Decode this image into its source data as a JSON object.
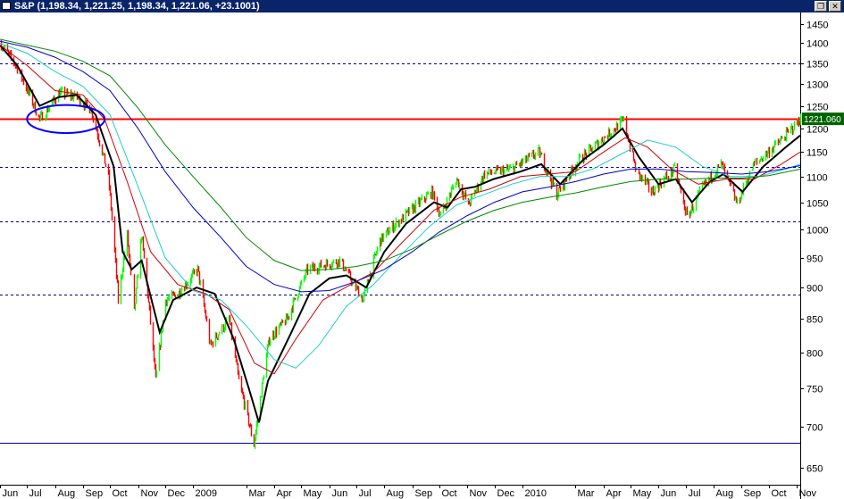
{
  "window": {
    "title": "S&P (1,198.34, 1,221.25, 1,198.34, 1,221.06, +23.1001)",
    "restore_glyph": "❐",
    "close_glyph": "✕"
  },
  "colors": {
    "up": "#00ff00",
    "down": "#ff0000",
    "ma_fast": "#000000",
    "ma_red": "#d00000",
    "ma_cyan": "#22cccc",
    "ma_blue": "#0000cc",
    "ma_green": "#008800",
    "hline_solid": "#ff0000",
    "hline_dash": "#000080",
    "ellipse": "#0000ff",
    "last_price_bg": "#006400"
  },
  "chart_data": {
    "type": "candlestick",
    "title": "S&P",
    "ohlc_last": {
      "open": 1198.34,
      "high": 1221.25,
      "low": 1198.34,
      "close": 1221.06,
      "change": 23.1001
    },
    "last_price_label": "1221.060",
    "y_scale": "log",
    "ylim": [
      630,
      1480
    ],
    "yticks": [
      650,
      700,
      750,
      800,
      850,
      900,
      950,
      1000,
      1050,
      1100,
      1150,
      1200,
      1250,
      1300,
      1350,
      1400,
      1450
    ],
    "xlim": [
      "2008-06-01",
      "2010-11-05"
    ],
    "x_labels": [
      {
        "date": "2008-06-01",
        "label": "Jun"
      },
      {
        "date": "2008-07-01",
        "label": "Jul"
      },
      {
        "date": "2008-08-01",
        "label": "Aug"
      },
      {
        "date": "2008-09-01",
        "label": "Sep"
      },
      {
        "date": "2008-10-01",
        "label": "Oct"
      },
      {
        "date": "2008-11-01",
        "label": "Nov"
      },
      {
        "date": "2008-12-01",
        "label": "Dec"
      },
      {
        "date": "2009-01-01",
        "label": "2009"
      },
      {
        "date": "2009-03-01",
        "label": "Mar"
      },
      {
        "date": "2009-04-01",
        "label": "Apr"
      },
      {
        "date": "2009-05-01",
        "label": "May"
      },
      {
        "date": "2009-06-01",
        "label": "Jun"
      },
      {
        "date": "2009-07-01",
        "label": "Jul"
      },
      {
        "date": "2009-08-01",
        "label": "Aug"
      },
      {
        "date": "2009-09-01",
        "label": "Sep"
      },
      {
        "date": "2009-10-01",
        "label": "Oct"
      },
      {
        "date": "2009-11-01",
        "label": "Nov"
      },
      {
        "date": "2009-12-01",
        "label": "Dec"
      },
      {
        "date": "2010-01-01",
        "label": "2010"
      },
      {
        "date": "2010-03-01",
        "label": "Mar"
      },
      {
        "date": "2010-04-01",
        "label": "Apr"
      },
      {
        "date": "2010-05-01",
        "label": "May"
      },
      {
        "date": "2010-06-01",
        "label": "Jun"
      },
      {
        "date": "2010-07-01",
        "label": "Jul"
      },
      {
        "date": "2010-08-01",
        "label": "Aug"
      },
      {
        "date": "2010-09-01",
        "label": "Sep"
      },
      {
        "date": "2010-10-01",
        "label": "Oct"
      },
      {
        "date": "2010-11-01",
        "label": "Nov"
      }
    ],
    "price_path": [
      [
        "2008-06-01",
        1400
      ],
      [
        "2008-06-20",
        1340
      ],
      [
        "2008-07-15",
        1220
      ],
      [
        "2008-08-05",
        1280
      ],
      [
        "2008-08-25",
        1270
      ],
      [
        "2008-09-10",
        1240
      ],
      [
        "2008-09-29",
        1100
      ],
      [
        "2008-10-10",
        880
      ],
      [
        "2008-10-20",
        990
      ],
      [
        "2008-10-27",
        860
      ],
      [
        "2008-11-04",
        990
      ],
      [
        "2008-11-20",
        760
      ],
      [
        "2008-12-01",
        880
      ],
      [
        "2008-12-15",
        890
      ],
      [
        "2009-01-06",
        930
      ],
      [
        "2009-01-20",
        810
      ],
      [
        "2009-02-09",
        850
      ],
      [
        "2009-02-20",
        760
      ],
      [
        "2009-03-09",
        677
      ],
      [
        "2009-03-26",
        820
      ],
      [
        "2009-04-15",
        850
      ],
      [
        "2009-05-08",
        930
      ],
      [
        "2009-06-12",
        945
      ],
      [
        "2009-07-08",
        880
      ],
      [
        "2009-07-27",
        980
      ],
      [
        "2009-08-20",
        1020
      ],
      [
        "2009-09-22",
        1070
      ],
      [
        "2009-10-02",
        1025
      ],
      [
        "2009-10-20",
        1095
      ],
      [
        "2009-11-02",
        1045
      ],
      [
        "2009-11-20",
        1105
      ],
      [
        "2009-12-20",
        1115
      ],
      [
        "2010-01-19",
        1150
      ],
      [
        "2010-02-08",
        1065
      ],
      [
        "2010-03-05",
        1135
      ],
      [
        "2010-04-23",
        1217
      ],
      [
        "2010-05-07",
        1110
      ],
      [
        "2010-05-25",
        1070
      ],
      [
        "2010-06-18",
        1115
      ],
      [
        "2010-07-02",
        1022
      ],
      [
        "2010-07-20",
        1080
      ],
      [
        "2010-08-09",
        1125
      ],
      [
        "2010-08-27",
        1047
      ],
      [
        "2010-09-15",
        1125
      ],
      [
        "2010-10-15",
        1176
      ],
      [
        "2010-11-05",
        1221
      ]
    ],
    "series": [
      {
        "key": "ma_fast",
        "values": [
          [
            "2008-06-01",
            1395
          ],
          [
            "2008-06-20",
            1345
          ],
          [
            "2008-07-15",
            1250
          ],
          [
            "2008-08-05",
            1270
          ],
          [
            "2008-08-25",
            1275
          ],
          [
            "2008-09-15",
            1230
          ],
          [
            "2008-10-05",
            1120
          ],
          [
            "2008-10-15",
            960
          ],
          [
            "2008-10-25",
            930
          ],
          [
            "2008-11-05",
            945
          ],
          [
            "2008-11-25",
            830
          ],
          [
            "2008-12-10",
            880
          ],
          [
            "2009-01-05",
            900
          ],
          [
            "2009-01-25",
            890
          ],
          [
            "2009-02-15",
            820
          ],
          [
            "2009-03-05",
            745
          ],
          [
            "2009-03-15",
            705
          ],
          [
            "2009-03-25",
            760
          ],
          [
            "2009-04-20",
            830
          ],
          [
            "2009-05-10",
            890
          ],
          [
            "2009-06-01",
            915
          ],
          [
            "2009-06-20",
            920
          ],
          [
            "2009-07-12",
            900
          ],
          [
            "2009-08-01",
            960
          ],
          [
            "2009-08-25",
            1010
          ],
          [
            "2009-09-25",
            1050
          ],
          [
            "2009-10-10",
            1040
          ],
          [
            "2009-10-25",
            1075
          ],
          [
            "2009-11-10",
            1080
          ],
          [
            "2009-11-30",
            1095
          ],
          [
            "2009-12-30",
            1110
          ],
          [
            "2010-01-22",
            1125
          ],
          [
            "2010-02-12",
            1085
          ],
          [
            "2010-03-10",
            1135
          ],
          [
            "2010-04-01",
            1165
          ],
          [
            "2010-04-22",
            1200
          ],
          [
            "2010-05-10",
            1140
          ],
          [
            "2010-06-01",
            1085
          ],
          [
            "2010-06-20",
            1095
          ],
          [
            "2010-07-08",
            1050
          ],
          [
            "2010-07-28",
            1090
          ],
          [
            "2010-08-12",
            1105
          ],
          [
            "2010-09-02",
            1070
          ],
          [
            "2010-09-25",
            1120
          ],
          [
            "2010-10-20",
            1160
          ],
          [
            "2010-11-05",
            1185
          ]
        ]
      },
      {
        "key": "ma_red",
        "values": [
          [
            "2008-06-01",
            1395
          ],
          [
            "2008-07-01",
            1345
          ],
          [
            "2008-08-01",
            1285
          ],
          [
            "2008-09-01",
            1275
          ],
          [
            "2008-09-25",
            1220
          ],
          [
            "2008-10-20",
            1090
          ],
          [
            "2008-11-15",
            960
          ],
          [
            "2008-12-15",
            905
          ],
          [
            "2009-01-15",
            890
          ],
          [
            "2009-02-10",
            865
          ],
          [
            "2009-03-10",
            785
          ],
          [
            "2009-04-01",
            770
          ],
          [
            "2009-04-25",
            820
          ],
          [
            "2009-05-25",
            880
          ],
          [
            "2009-06-25",
            905
          ],
          [
            "2009-07-20",
            925
          ],
          [
            "2009-08-20",
            975
          ],
          [
            "2009-09-25",
            1035
          ],
          [
            "2009-10-25",
            1060
          ],
          [
            "2009-11-25",
            1075
          ],
          [
            "2009-12-30",
            1100
          ],
          [
            "2010-01-30",
            1105
          ],
          [
            "2010-03-01",
            1110
          ],
          [
            "2010-04-01",
            1150
          ],
          [
            "2010-04-25",
            1180
          ],
          [
            "2010-05-20",
            1160
          ],
          [
            "2010-06-15",
            1115
          ],
          [
            "2010-07-15",
            1085
          ],
          [
            "2010-08-15",
            1095
          ],
          [
            "2010-09-15",
            1095
          ],
          [
            "2010-10-15",
            1125
          ],
          [
            "2010-11-05",
            1150
          ]
        ]
      },
      {
        "key": "ma_cyan",
        "values": [
          [
            "2008-06-01",
            1400
          ],
          [
            "2008-07-01",
            1375
          ],
          [
            "2008-08-01",
            1330
          ],
          [
            "2008-09-01",
            1295
          ],
          [
            "2008-10-01",
            1230
          ],
          [
            "2008-11-01",
            1080
          ],
          [
            "2008-12-01",
            950
          ],
          [
            "2009-01-01",
            895
          ],
          [
            "2009-02-01",
            880
          ],
          [
            "2009-03-01",
            840
          ],
          [
            "2009-04-01",
            790
          ],
          [
            "2009-04-25",
            778
          ],
          [
            "2009-05-20",
            810
          ],
          [
            "2009-06-20",
            870
          ],
          [
            "2009-07-20",
            905
          ],
          [
            "2009-08-20",
            955
          ],
          [
            "2009-09-20",
            1005
          ],
          [
            "2009-10-20",
            1045
          ],
          [
            "2009-11-20",
            1065
          ],
          [
            "2009-12-20",
            1085
          ],
          [
            "2010-01-20",
            1100
          ],
          [
            "2010-02-20",
            1100
          ],
          [
            "2010-03-20",
            1115
          ],
          [
            "2010-04-20",
            1145
          ],
          [
            "2010-05-20",
            1175
          ],
          [
            "2010-06-20",
            1160
          ],
          [
            "2010-07-20",
            1120
          ],
          [
            "2010-08-20",
            1100
          ],
          [
            "2010-09-20",
            1100
          ],
          [
            "2010-10-20",
            1115
          ],
          [
            "2010-11-05",
            1125
          ]
        ]
      },
      {
        "key": "ma_blue",
        "values": [
          [
            "2008-06-01",
            1405
          ],
          [
            "2008-07-01",
            1390
          ],
          [
            "2008-08-01",
            1365
          ],
          [
            "2008-09-01",
            1330
          ],
          [
            "2008-10-01",
            1285
          ],
          [
            "2008-11-01",
            1200
          ],
          [
            "2008-12-01",
            1110
          ],
          [
            "2009-01-01",
            1040
          ],
          [
            "2009-02-01",
            985
          ],
          [
            "2009-03-01",
            935
          ],
          [
            "2009-04-01",
            905
          ],
          [
            "2009-05-01",
            893
          ],
          [
            "2009-06-01",
            895
          ],
          [
            "2009-07-01",
            910
          ],
          [
            "2009-08-01",
            930
          ],
          [
            "2009-09-01",
            960
          ],
          [
            "2009-10-01",
            995
          ],
          [
            "2009-11-01",
            1025
          ],
          [
            "2009-12-01",
            1050
          ],
          [
            "2010-01-01",
            1070
          ],
          [
            "2010-02-01",
            1080
          ],
          [
            "2010-03-01",
            1090
          ],
          [
            "2010-04-01",
            1105
          ],
          [
            "2010-05-01",
            1115
          ],
          [
            "2010-06-01",
            1115
          ],
          [
            "2010-07-01",
            1110
          ],
          [
            "2010-08-01",
            1108
          ],
          [
            "2010-09-01",
            1105
          ],
          [
            "2010-10-01",
            1110
          ],
          [
            "2010-11-05",
            1122
          ]
        ]
      },
      {
        "key": "ma_green",
        "values": [
          [
            "2008-06-01",
            1410
          ],
          [
            "2008-07-01",
            1395
          ],
          [
            "2008-08-01",
            1380
          ],
          [
            "2008-09-01",
            1355
          ],
          [
            "2008-10-01",
            1320
          ],
          [
            "2008-11-01",
            1245
          ],
          [
            "2008-12-01",
            1165
          ],
          [
            "2009-01-01",
            1100
          ],
          [
            "2009-02-01",
            1040
          ],
          [
            "2009-03-01",
            985
          ],
          [
            "2009-04-01",
            945
          ],
          [
            "2009-05-01",
            928
          ],
          [
            "2009-06-01",
            930
          ],
          [
            "2009-07-01",
            935
          ],
          [
            "2009-08-01",
            945
          ],
          [
            "2009-09-01",
            965
          ],
          [
            "2009-10-01",
            990
          ],
          [
            "2009-11-01",
            1015
          ],
          [
            "2009-12-01",
            1035
          ],
          [
            "2010-01-01",
            1050
          ],
          [
            "2010-02-01",
            1060
          ],
          [
            "2010-03-01",
            1068
          ],
          [
            "2010-04-01",
            1080
          ],
          [
            "2010-05-01",
            1090
          ],
          [
            "2010-06-01",
            1095
          ],
          [
            "2010-07-01",
            1095
          ],
          [
            "2010-08-01",
            1097
          ],
          [
            "2010-09-01",
            1097
          ],
          [
            "2010-10-01",
            1102
          ],
          [
            "2010-11-05",
            1115
          ]
        ]
      }
    ],
    "hlines": [
      {
        "value": 1350,
        "style": "dashed",
        "color": "#000080"
      },
      {
        "value": 1221.06,
        "style": "solid",
        "color": "#ff0000"
      },
      {
        "value": 1120,
        "style": "dashed",
        "color": "#0000cc"
      },
      {
        "value": 1015,
        "style": "dashed",
        "color": "#000080"
      },
      {
        "value": 888,
        "style": "dashed",
        "color": "#000080"
      },
      {
        "value": 680,
        "style": "solid",
        "color": "#000080"
      }
    ],
    "annotation_ellipse": {
      "from_date": "2008-07-01",
      "to_date": "2008-09-25",
      "upper_value": 1252,
      "lower_value": 1190,
      "color": "#0000ff"
    }
  }
}
